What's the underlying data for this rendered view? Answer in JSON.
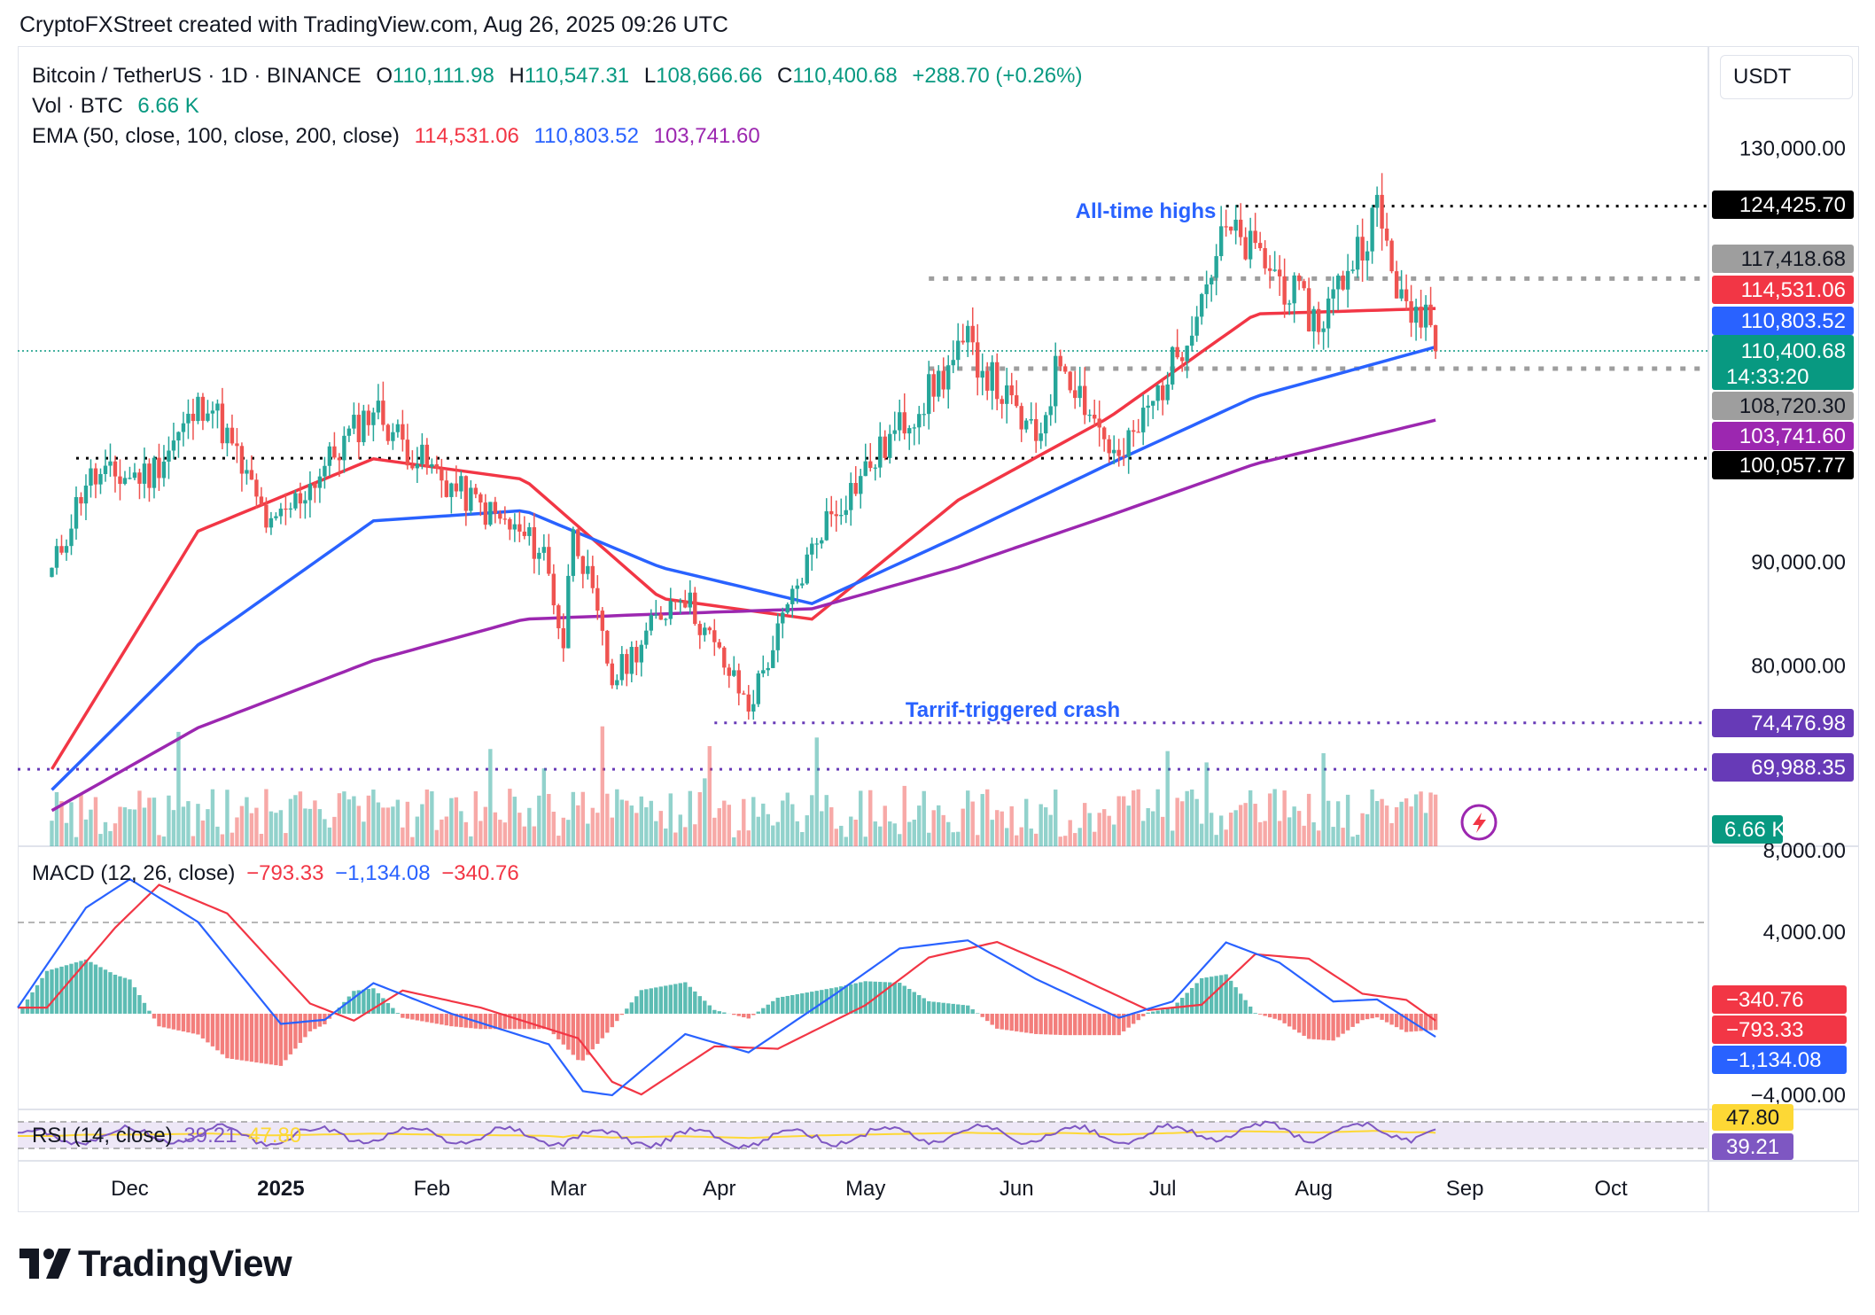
{
  "header": {
    "watermark": "CryptoFXStreet created with TradingView.com, Aug 26, 2025 09:26 UTC"
  },
  "legend": {
    "symbol": "Bitcoin / TetherUS · 1D · BINANCE",
    "open_label": "O",
    "open": "110,111.98",
    "high_label": "H",
    "high": "110,547.31",
    "low_label": "L",
    "low": "108,666.66",
    "close_label": "C",
    "close": "110,400.68",
    "change": "+288.70 (+0.26%)",
    "vol_label": "Vol · BTC",
    "vol_value": "6.66 K",
    "ema_label": "EMA (50, close, 100, close, 200, close)",
    "ema50": "114,531.06",
    "ema100": "110,803.52",
    "ema200": "103,741.60"
  },
  "currency": "USDT",
  "annotations": {
    "ath": "All-time highs",
    "crash": "Tarrif-triggered crash"
  },
  "colors": {
    "up": "#26a69a",
    "down": "#ef5350",
    "ema50": "#f23645",
    "ema100": "#2962ff",
    "ema200": "#9c27b0",
    "rsi": "#7e57c2",
    "rsi_ma": "#fdd835",
    "macd": "#2962ff",
    "signal": "#f23645"
  },
  "macd": {
    "label": "MACD (12, 26, close)",
    "hist": "−793.33",
    "macd": "−1,134.08",
    "signal": "−340.76"
  },
  "rsi": {
    "label": "RSI (14, close)",
    "value": "39.21",
    "ma": "47.80"
  },
  "footer": {
    "brand": "TradingView"
  },
  "chart_data": {
    "type": "candlestick",
    "title": "Bitcoin / TetherUS · 1D · BINANCE",
    "price_axis": {
      "ticks": [
        "130,000.00",
        "90,000.00",
        "80,000.00"
      ],
      "tick_values": [
        130000,
        90000,
        80000
      ]
    },
    "time_axis": {
      "ticks": [
        "Dec",
        "2025",
        "Feb",
        "Mar",
        "Apr",
        "May",
        "Jun",
        "Jul",
        "Aug",
        "Sep",
        "Oct"
      ]
    },
    "price_anchors": [
      [
        "2024-11-15",
        89000
      ],
      [
        "2024-11-22",
        98000
      ],
      [
        "2024-12-05",
        98500
      ],
      [
        "2024-12-17",
        106000
      ],
      [
        "2024-12-30",
        93000
      ],
      [
        "2025-01-20",
        105000
      ],
      [
        "2025-01-27",
        101000
      ],
      [
        "2025-02-03",
        98000
      ],
      [
        "2025-02-24",
        91000
      ],
      [
        "2025-02-28",
        82000
      ],
      [
        "2025-03-02",
        94000
      ],
      [
        "2025-03-10",
        78500
      ],
      [
        "2025-03-24",
        87500
      ],
      [
        "2025-04-07",
        76000
      ],
      [
        "2025-04-22",
        93500
      ],
      [
        "2025-05-08",
        103000
      ],
      [
        "2025-05-22",
        111000
      ],
      [
        "2025-06-05",
        101500
      ],
      [
        "2025-06-10",
        110000
      ],
      [
        "2025-06-22",
        99500
      ],
      [
        "2025-07-03",
        109000
      ],
      [
        "2025-07-14",
        122000
      ],
      [
        "2025-07-22",
        119000
      ],
      [
        "2025-08-02",
        113000
      ],
      [
        "2025-08-14",
        124000
      ],
      [
        "2025-08-20",
        113500
      ],
      [
        "2025-08-24",
        115000
      ],
      [
        "2025-08-26",
        110400
      ]
    ],
    "ema_series": [
      {
        "name": "EMA 50",
        "last": 114531.06,
        "points": [
          [
            "2024-11-15",
            70000
          ],
          [
            "2024-12-15",
            93000
          ],
          [
            "2025-01-20",
            100000
          ],
          [
            "2025-02-20",
            98000
          ],
          [
            "2025-03-20",
            86500
          ],
          [
            "2025-04-20",
            84500
          ],
          [
            "2025-05-20",
            96000
          ],
          [
            "2025-06-20",
            104000
          ],
          [
            "2025-07-20",
            114000
          ],
          [
            "2025-08-26",
            114531
          ]
        ]
      },
      {
        "name": "EMA 100",
        "last": 110803.52,
        "points": [
          [
            "2024-11-15",
            68000
          ],
          [
            "2024-12-15",
            82000
          ],
          [
            "2025-01-20",
            94000
          ],
          [
            "2025-02-20",
            95000
          ],
          [
            "2025-03-20",
            89500
          ],
          [
            "2025-04-20",
            86000
          ],
          [
            "2025-05-20",
            92500
          ],
          [
            "2025-06-20",
            99500
          ],
          [
            "2025-07-20",
            106000
          ],
          [
            "2025-08-26",
            110803
          ]
        ]
      },
      {
        "name": "EMA 200",
        "last": 103741.6,
        "points": [
          [
            "2024-11-15",
            66000
          ],
          [
            "2024-12-15",
            74000
          ],
          [
            "2025-01-20",
            80500
          ],
          [
            "2025-02-20",
            84500
          ],
          [
            "2025-03-20",
            85000
          ],
          [
            "2025-04-20",
            85500
          ],
          [
            "2025-05-20",
            89500
          ],
          [
            "2025-06-20",
            94500
          ],
          [
            "2025-07-20",
            99500
          ],
          [
            "2025-08-26",
            103741
          ]
        ]
      }
    ],
    "price_labels": [
      {
        "text": "124,425.70",
        "value": 124425.7,
        "bg": "#000000",
        "fg": "#ffffff"
      },
      {
        "text": "117,418.68",
        "value": 117418.68,
        "bg": "#9e9e9e",
        "fg": "#131722"
      },
      {
        "text": "114,531.06",
        "value": 114531.06,
        "bg": "#f23645",
        "fg": "#ffffff"
      },
      {
        "text": "110,803.52",
        "value": 110803.52,
        "bg": "#2962ff",
        "fg": "#ffffff"
      },
      {
        "text": "110,400.68",
        "value": 110400.68,
        "bg": "#089981",
        "fg": "#ffffff",
        "sub": "14:33:20"
      },
      {
        "text": "108,720.30",
        "value": 108720.3,
        "bg": "#9e9e9e",
        "fg": "#131722"
      },
      {
        "text": "103,741.60",
        "value": 103741.6,
        "bg": "#9c27b0",
        "fg": "#ffffff"
      },
      {
        "text": "100,057.77",
        "value": 100057.77,
        "bg": "#000000",
        "fg": "#ffffff"
      },
      {
        "text": "74,476.98",
        "value": 74476.98,
        "bg": "#673ab7",
        "fg": "#ffffff"
      },
      {
        "text": "69,988.35",
        "value": 69988.35,
        "bg": "#673ab7",
        "fg": "#ffffff"
      }
    ],
    "levels": [
      {
        "value": 124425.7,
        "color": "#000000",
        "from": "2025-07-14"
      },
      {
        "value": 117418.68,
        "color": "#9e9e9e",
        "from": "2025-05-14"
      },
      {
        "value": 108720.3,
        "color": "#9e9e9e",
        "from": "2025-05-14"
      },
      {
        "value": 100057.77,
        "color": "#000000",
        "from": "2024-11-20"
      },
      {
        "value": 74476.98,
        "color": "#673ab7",
        "from": "2025-03-31"
      },
      {
        "value": 69988.35,
        "color": "#673ab7",
        "from": "2024-11-08"
      }
    ],
    "volume": {
      "last_label": "6.66 K"
    },
    "macd": {
      "axis_ticks": [
        "8,000.00",
        "4,000.00",
        "−4,000.00"
      ],
      "axis_values": [
        8000,
        4000,
        -4000
      ],
      "labels": [
        {
          "text": "−340.76",
          "value": -340.76,
          "bg": "#f23645"
        },
        {
          "text": "−793.33",
          "value": -793.33,
          "bg": "#f23645"
        },
        {
          "text": "−1,134.08",
          "value": -1134.08,
          "bg": "#2962ff"
        }
      ]
    },
    "rsi": {
      "labels": [
        {
          "text": "47.80",
          "value": 47.8,
          "bg": "#fdd835",
          "fg": "#131722"
        },
        {
          "text": "39.21",
          "value": 39.21,
          "bg": "#7e57c2",
          "fg": "#ffffff"
        }
      ]
    }
  }
}
